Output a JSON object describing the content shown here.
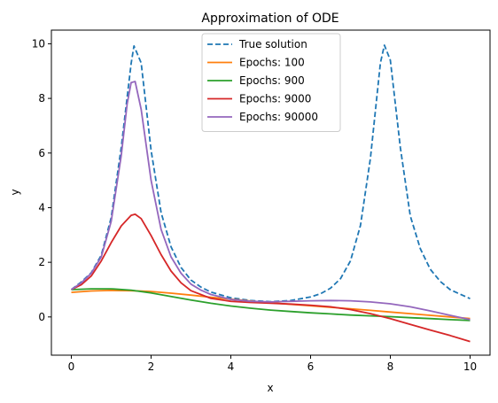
{
  "chart_data": {
    "type": "line",
    "title": "Approximation of ODE",
    "xlabel": "x",
    "ylabel": "y",
    "xlim": [
      -0.5,
      10.5
    ],
    "ylim": [
      -1.4,
      10.5
    ],
    "xticks": [
      0,
      2,
      4,
      6,
      8,
      10
    ],
    "yticks": [
      0,
      2,
      4,
      6,
      8,
      10
    ],
    "grid": false,
    "legend_placement": "upper-center",
    "series": [
      {
        "name": "True solution",
        "color": "#1f77b4",
        "dash": "dashed",
        "x": [
          0,
          0.25,
          0.5,
          0.75,
          1.0,
          1.25,
          1.5,
          1.57,
          1.75,
          2.0,
          2.25,
          2.5,
          2.75,
          3.0,
          3.25,
          3.5,
          4.0,
          4.5,
          5.0,
          5.5,
          6.0,
          6.25,
          6.5,
          6.75,
          7.0,
          7.25,
          7.5,
          7.75,
          7.85,
          8.0,
          8.25,
          8.5,
          8.75,
          9.0,
          9.25,
          9.5,
          10.0
        ],
        "y": [
          1.0,
          1.28,
          1.62,
          2.26,
          3.64,
          6.2,
          9.28,
          9.92,
          9.3,
          6.1,
          3.82,
          2.57,
          1.81,
          1.35,
          1.09,
          0.91,
          0.7,
          0.6,
          0.56,
          0.6,
          0.73,
          0.85,
          1.05,
          1.4,
          2.05,
          3.35,
          5.8,
          9.3,
          9.95,
          9.4,
          6.2,
          3.7,
          2.5,
          1.75,
          1.3,
          1.0,
          0.67
        ]
      },
      {
        "name": "Epochs: 100",
        "color": "#ff7f0e",
        "dash": "solid",
        "x": [
          0,
          0.5,
          1.0,
          1.5,
          2.0,
          2.5,
          3.0,
          3.5,
          4.0,
          4.5,
          5.0,
          5.5,
          6.0,
          6.5,
          7.0,
          7.5,
          8.0,
          8.5,
          9.0,
          9.5,
          10.0
        ],
        "y": [
          0.9,
          0.95,
          0.97,
          0.96,
          0.93,
          0.87,
          0.8,
          0.72,
          0.65,
          0.58,
          0.52,
          0.46,
          0.41,
          0.35,
          0.3,
          0.24,
          0.18,
          0.12,
          0.06,
          0.0,
          -0.06
        ]
      },
      {
        "name": "Epochs: 900",
        "color": "#2ca02c",
        "dash": "solid",
        "x": [
          0,
          0.5,
          1.0,
          1.5,
          2.0,
          2.5,
          3.0,
          3.5,
          4.0,
          4.5,
          5.0,
          5.5,
          6.0,
          6.5,
          7.0,
          7.5,
          8.0,
          8.5,
          9.0,
          9.5,
          10.0
        ],
        "y": [
          1.0,
          1.03,
          1.03,
          0.98,
          0.88,
          0.75,
          0.62,
          0.5,
          0.4,
          0.32,
          0.25,
          0.2,
          0.15,
          0.11,
          0.07,
          0.04,
          0.01,
          -0.03,
          -0.06,
          -0.1,
          -0.13
        ]
      },
      {
        "name": "Epochs: 9000",
        "color": "#d62728",
        "dash": "solid",
        "x": [
          0,
          0.25,
          0.5,
          0.75,
          1.0,
          1.25,
          1.5,
          1.6,
          1.75,
          2.0,
          2.25,
          2.5,
          2.75,
          3.0,
          3.5,
          4.0,
          4.5,
          5.0,
          5.5,
          6.0,
          6.5,
          7.0,
          7.5,
          8.0,
          8.5,
          9.0,
          9.5,
          10.0
        ],
        "y": [
          1.0,
          1.18,
          1.5,
          2.05,
          2.72,
          3.33,
          3.72,
          3.76,
          3.6,
          2.98,
          2.28,
          1.68,
          1.25,
          0.96,
          0.68,
          0.57,
          0.53,
          0.5,
          0.47,
          0.43,
          0.37,
          0.27,
          0.12,
          -0.06,
          -0.27,
          -0.48,
          -0.68,
          -0.9
        ]
      },
      {
        "name": "Epochs: 90000",
        "color": "#9467bd",
        "dash": "solid",
        "x": [
          0,
          0.25,
          0.5,
          0.75,
          1.0,
          1.25,
          1.4,
          1.5,
          1.6,
          1.75,
          2.0,
          2.25,
          2.5,
          2.75,
          3.0,
          3.25,
          3.5,
          4.0,
          4.5,
          5.0,
          5.5,
          6.0,
          6.5,
          7.0,
          7.5,
          8.0,
          8.5,
          9.0,
          9.5,
          10.0
        ],
        "y": [
          1.0,
          1.25,
          1.6,
          2.2,
          3.5,
          5.9,
          7.8,
          8.58,
          8.62,
          7.6,
          5.0,
          3.2,
          2.2,
          1.6,
          1.2,
          0.98,
          0.82,
          0.64,
          0.57,
          0.55,
          0.57,
          0.59,
          0.6,
          0.59,
          0.55,
          0.48,
          0.37,
          0.22,
          0.06,
          -0.1
        ]
      }
    ]
  }
}
